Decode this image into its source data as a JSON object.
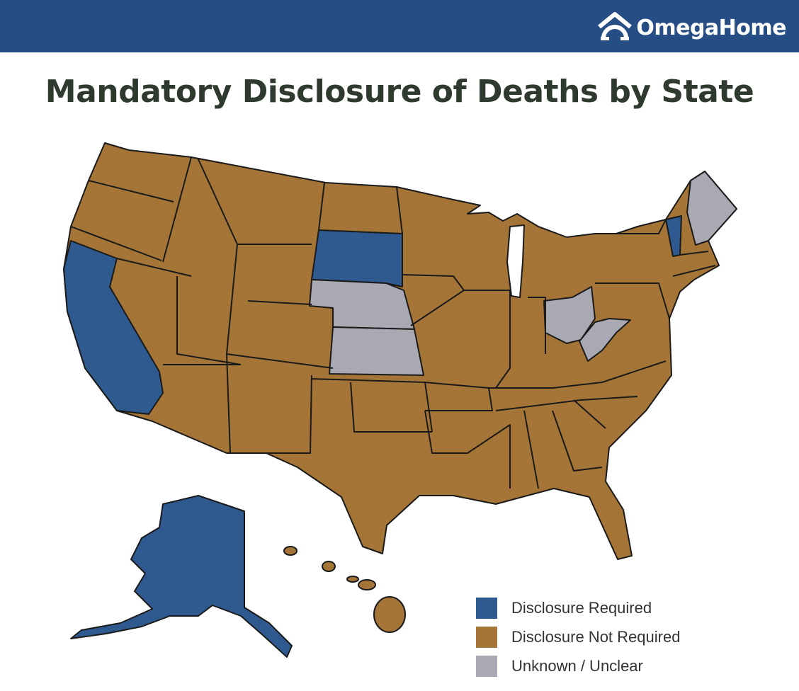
{
  "header": {
    "brand": "OmegaHome"
  },
  "title": "Mandatory Disclosure of Deaths by State",
  "legend": [
    {
      "label": "Disclosure Required",
      "color": "#2f5a8f"
    },
    {
      "label": "Disclosure Not Required",
      "color": "#a57437"
    },
    {
      "label": "Unknown / Unclear",
      "color": "#a9a9b3"
    }
  ]
}
